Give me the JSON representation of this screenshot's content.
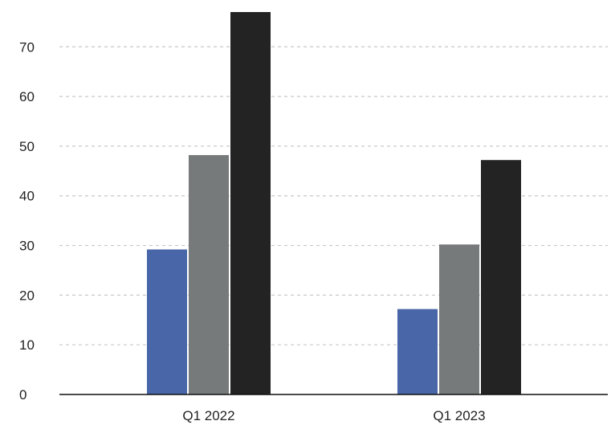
{
  "chart_data": {
    "type": "bar",
    "title": "",
    "xlabel": "",
    "ylabel": "",
    "categories": [
      "Q1 2022",
      "Q1 2023"
    ],
    "series": [
      {
        "values": [
          29.2,
          17.2
        ],
        "color": "#4866a8"
      },
      {
        "values": [
          48.2,
          30.2
        ],
        "color": "#777a7a"
      },
      {
        "values": [
          77.0,
          47.2
        ],
        "color": "#232323"
      }
    ],
    "ylim": [
      0,
      77
    ],
    "yticks": [
      "0",
      "10",
      "20",
      "30",
      "40",
      "50",
      "60",
      "70"
    ],
    "grid": true,
    "legend": "none"
  }
}
